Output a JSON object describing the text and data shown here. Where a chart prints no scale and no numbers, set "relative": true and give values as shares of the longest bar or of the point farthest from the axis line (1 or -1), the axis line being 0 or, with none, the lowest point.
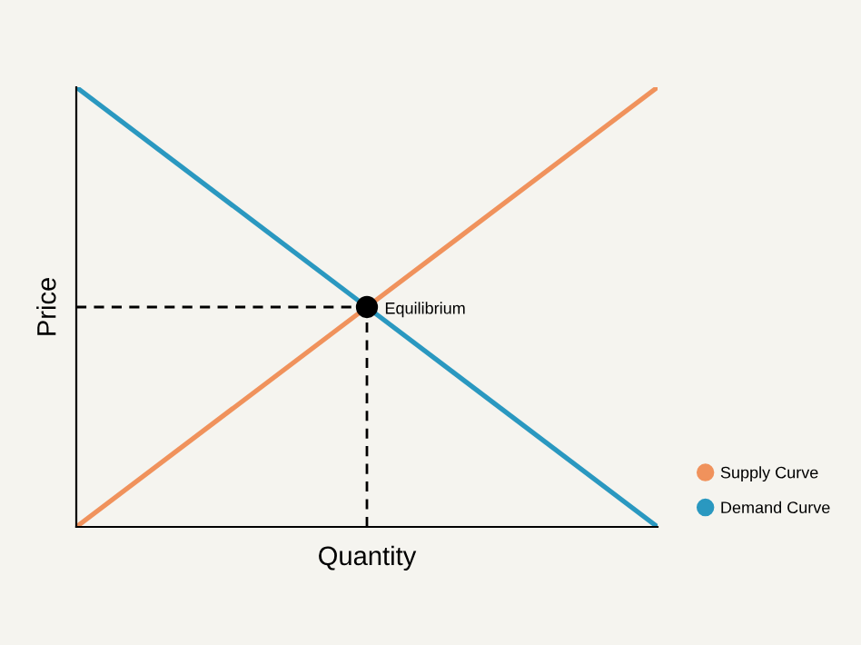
{
  "chart_data": {
    "type": "line",
    "xlabel": "Quantity",
    "ylabel": "Price",
    "relative": true,
    "categories": [
      null,
      null,
      null
    ],
    "series": [
      {
        "name": "Supply Curve",
        "color": "#f0925c",
        "values": [
          0,
          0.5,
          1
        ]
      },
      {
        "name": "Demand Curve",
        "color": "#2a98c0",
        "values": [
          1,
          0.5,
          0
        ]
      }
    ],
    "annotations": [
      "Equilibrium"
    ],
    "legend": "bottom right",
    "grid": false,
    "marker": "none"
  }
}
